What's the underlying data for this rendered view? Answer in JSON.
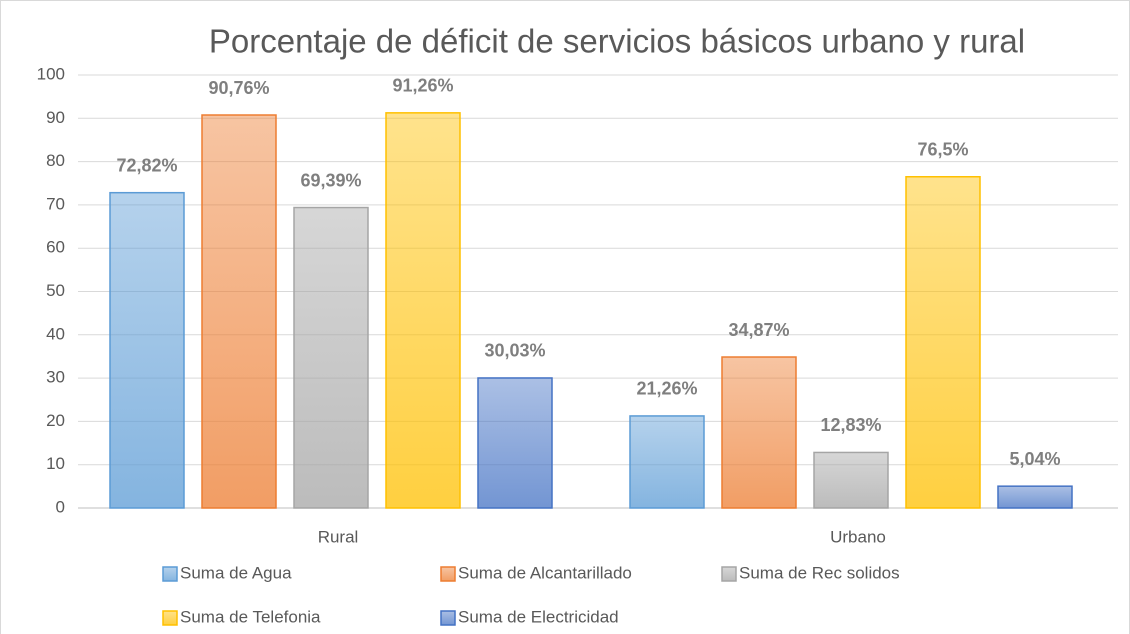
{
  "chart_data": {
    "type": "bar",
    "title": "Porcentaje de déficit de servicios básicos urbano y rural",
    "categories": [
      "Rural",
      "Urbano"
    ],
    "series": [
      {
        "name": "Suma de Agua",
        "color": "#5b9bd5",
        "values": [
          72.82,
          21.26
        ],
        "value_labels": [
          "72,82%",
          "21,26%"
        ]
      },
      {
        "name": "Suma de Alcantarillado",
        "color": "#ed7d31",
        "values": [
          90.76,
          34.87
        ],
        "value_labels": [
          "90,76%",
          "34,87%"
        ]
      },
      {
        "name": "Suma de Rec solidos",
        "color": "#a5a5a5",
        "values": [
          69.39,
          12.83
        ],
        "value_labels": [
          "69,39%",
          "12,83%"
        ]
      },
      {
        "name": "Suma de Telefonia",
        "color": "#ffc000",
        "values": [
          91.26,
          76.5
        ],
        "value_labels": [
          "91,26%",
          "76,5%"
        ]
      },
      {
        "name": "Suma de Electricidad",
        "color": "#4472c4",
        "values": [
          30.03,
          5.04
        ],
        "value_labels": [
          "30,03%",
          "5,04%"
        ]
      }
    ],
    "ylim": [
      0,
      100
    ],
    "yticks": [
      0,
      10,
      20,
      30,
      40,
      50,
      60,
      70,
      80,
      90,
      100
    ],
    "grid": true
  }
}
